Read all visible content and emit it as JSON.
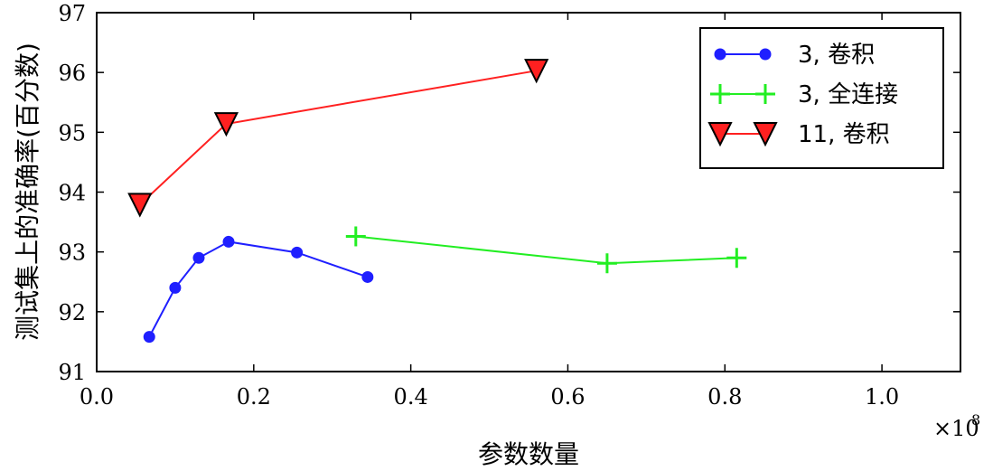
{
  "chart_data": {
    "type": "line",
    "xlabel": "参数数量",
    "ylabel": "测试集上的准确率(百分数)",
    "x_multiplier_label": "×10",
    "x_multiplier_exp": "8",
    "xlim": [
      0.0,
      1.1
    ],
    "ylim": [
      91,
      97
    ],
    "x_ticks": [
      "0.0",
      "0.2",
      "0.4",
      "0.6",
      "0.8",
      "1.0"
    ],
    "y_ticks": [
      "91",
      "92",
      "93",
      "94",
      "95",
      "96",
      "97"
    ],
    "grid": false,
    "legend_position": "top-right",
    "series": [
      {
        "name": "3, 卷积",
        "color": "#1f1fff",
        "marker": "circle",
        "x": [
          0.067,
          0.1,
          0.13,
          0.168,
          0.255,
          0.345
        ],
        "y": [
          91.58,
          92.4,
          92.9,
          93.17,
          92.99,
          92.58
        ]
      },
      {
        "name": "3, 全连接",
        "color": "#22ee22",
        "marker": "plus",
        "x": [
          0.33,
          0.65,
          0.815
        ],
        "y": [
          93.26,
          92.81,
          92.9
        ]
      },
      {
        "name": "11, 卷积",
        "color": "#ff2020",
        "marker": "triangle-down",
        "x": [
          0.055,
          0.165,
          0.56
        ],
        "y": [
          93.79,
          95.14,
          96.03
        ]
      }
    ]
  }
}
